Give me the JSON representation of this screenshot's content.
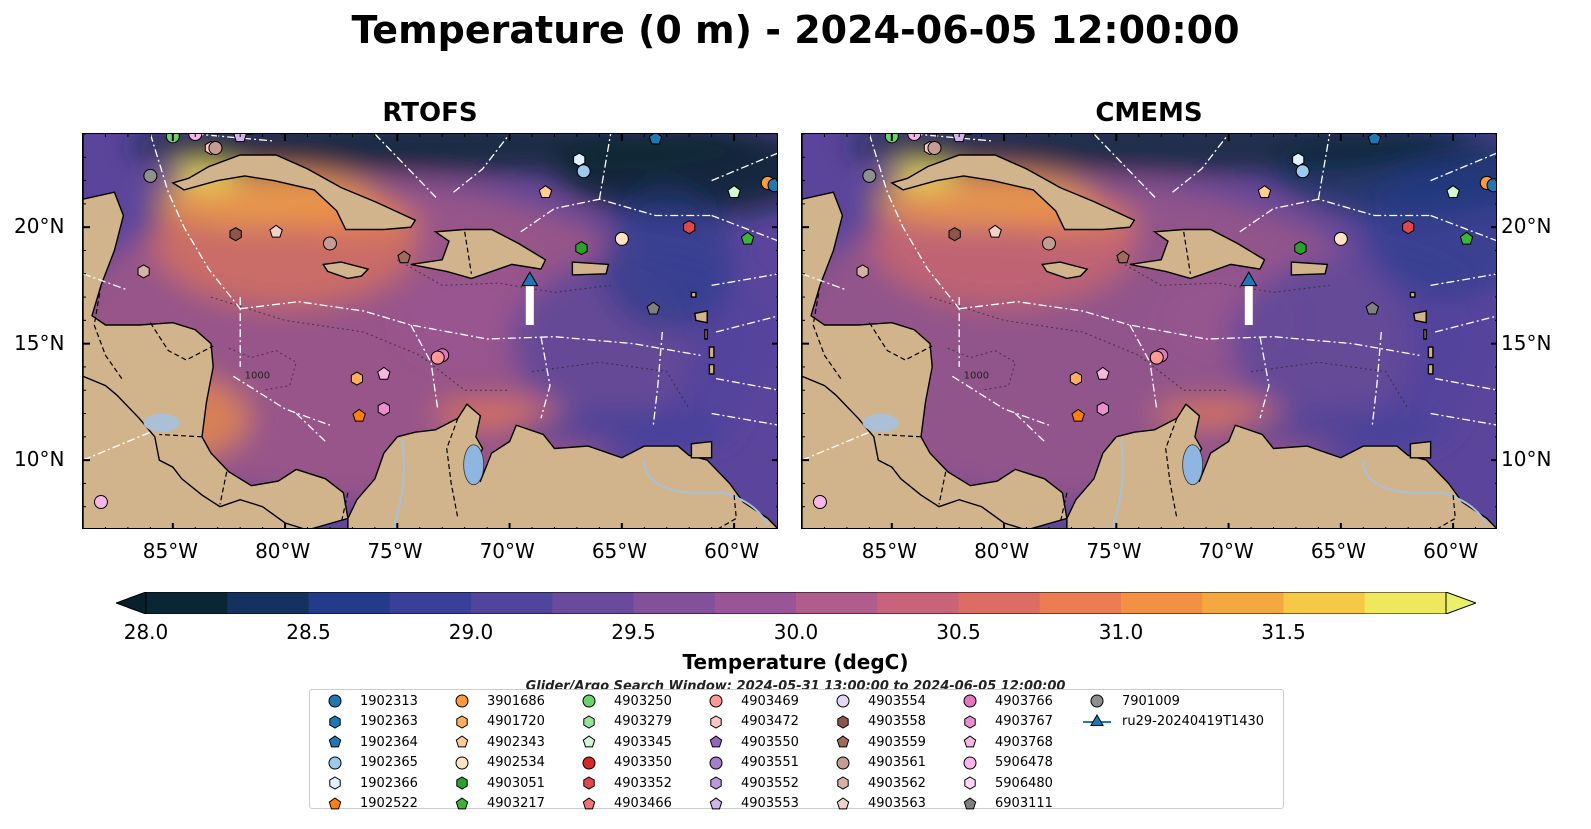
{
  "title": "Temperature (0 m) - 2024-06-05 12:00:00",
  "panels": [
    {
      "title": "RTOFS"
    },
    {
      "title": "CMEMS"
    }
  ],
  "map": {
    "lon_ticks": [
      "85°W",
      "80°W",
      "75°W",
      "70°W",
      "65°W",
      "60°W"
    ],
    "lat_ticks": [
      "20°N",
      "15°N",
      "10°N"
    ],
    "lon_range": [
      -89,
      -58
    ],
    "lat_range": [
      7,
      24
    ],
    "contour_label": "1000"
  },
  "colorbar": {
    "label": "Temperature (degC)",
    "ticks": [
      "28.0",
      "28.5",
      "29.0",
      "29.5",
      "30.0",
      "30.5",
      "31.0",
      "31.5"
    ],
    "colors": [
      "#0a2533",
      "#15325e",
      "#243a8a",
      "#3a3f9a",
      "#51449c",
      "#6a4a9b",
      "#83509a",
      "#9a5596",
      "#b05c8c",
      "#c8637a",
      "#dd6c64",
      "#ec7d52",
      "#f29044",
      "#f5a840",
      "#f5c846",
      "#f0e85c"
    ],
    "over_color": "#eaf06a",
    "under_color": "#07202b"
  },
  "legend": {
    "title": "Glider/Argo Search Window: 2024-05-31 13:00:00 to 2024-06-05 12:00:00",
    "items": [
      {
        "label": "1902313",
        "shape": "circle",
        "color": "#1f77b4"
      },
      {
        "label": "1902363",
        "shape": "hexagon",
        "color": "#1f77b4"
      },
      {
        "label": "1902364",
        "shape": "pentagon",
        "color": "#1f77b4"
      },
      {
        "label": "1902365",
        "shape": "circle",
        "color": "#9ec9ef"
      },
      {
        "label": "1902366",
        "shape": "hexagon",
        "color": "#dff0ff"
      },
      {
        "label": "1902522",
        "shape": "pentagon",
        "color": "#ff7f0e"
      },
      {
        "label": "3901686",
        "shape": "circle",
        "color": "#ff9a3c"
      },
      {
        "label": "4901720",
        "shape": "hexagon",
        "color": "#ffae60"
      },
      {
        "label": "4902343",
        "shape": "pentagon",
        "color": "#ffcc99"
      },
      {
        "label": "4902534",
        "shape": "circle",
        "color": "#ffe2c4"
      },
      {
        "label": "4903051",
        "shape": "hexagon",
        "color": "#2ca02c"
      },
      {
        "label": "4903217",
        "shape": "pentagon",
        "color": "#3cb43c"
      },
      {
        "label": "4903250",
        "shape": "circle",
        "color": "#6ad36a"
      },
      {
        "label": "4903279",
        "shape": "hexagon",
        "color": "#98e398"
      },
      {
        "label": "4903345",
        "shape": "pentagon",
        "color": "#d2f7d2"
      },
      {
        "label": "4903350",
        "shape": "circle",
        "color": "#d62728"
      },
      {
        "label": "4903352",
        "shape": "hexagon",
        "color": "#e0474a"
      },
      {
        "label": "4903466",
        "shape": "pentagon",
        "color": "#f07474"
      },
      {
        "label": "4903469",
        "shape": "circle",
        "color": "#ff9896"
      },
      {
        "label": "4903472",
        "shape": "hexagon",
        "color": "#ffc6c4"
      },
      {
        "label": "4903550",
        "shape": "pentagon",
        "color": "#9467bd"
      },
      {
        "label": "4903551",
        "shape": "circle",
        "color": "#a57fcb"
      },
      {
        "label": "4903552",
        "shape": "hexagon",
        "color": "#bb99dd"
      },
      {
        "label": "4903553",
        "shape": "pentagon",
        "color": "#cdb4ea"
      },
      {
        "label": "4903554",
        "shape": "circle",
        "color": "#e4d6f5"
      },
      {
        "label": "4903558",
        "shape": "hexagon",
        "color": "#8c564b"
      },
      {
        "label": "4903559",
        "shape": "pentagon",
        "color": "#a06a5c"
      },
      {
        "label": "4903561",
        "shape": "circle",
        "color": "#c49c94"
      },
      {
        "label": "4903562",
        "shape": "hexagon",
        "color": "#d8b0a6"
      },
      {
        "label": "4903563",
        "shape": "pentagon",
        "color": "#f2d1c6"
      },
      {
        "label": "4903766",
        "shape": "circle",
        "color": "#e377c2"
      },
      {
        "label": "4903767",
        "shape": "hexagon",
        "color": "#eb8ed0"
      },
      {
        "label": "4903768",
        "shape": "pentagon",
        "color": "#f7b6e2"
      },
      {
        "label": "5906478",
        "shape": "circle",
        "color": "#f7b6e8"
      },
      {
        "label": "5906480",
        "shape": "hexagon",
        "color": "#fcd5f2"
      },
      {
        "label": "6903111",
        "shape": "pentagon",
        "color": "#7f7f7f"
      },
      {
        "label": "7901009",
        "shape": "circle",
        "color": "#8f8f8f"
      },
      {
        "label": "ru29-20240419T1430",
        "shape": "triangle-line",
        "color": "#1f77b4"
      }
    ]
  },
  "markers": [
    {
      "id": "7901009",
      "lon": -86.0,
      "lat": 22.2
    },
    {
      "id": "4903345",
      "lon": -85.0,
      "lat": 24.0
    },
    {
      "id": "4903250",
      "lon": -85.0,
      "lat": 23.9
    },
    {
      "id": "5906478",
      "lon": -84.0,
      "lat": 24.0
    },
    {
      "id": "4903472",
      "lon": -83.3,
      "lat": 23.4
    },
    {
      "id": "4903561",
      "lon": -83.1,
      "lat": 23.4
    },
    {
      "id": "4903553",
      "lon": -82.0,
      "lat": 23.9
    },
    {
      "id": "4903558",
      "lon": -82.2,
      "lat": 19.7
    },
    {
      "id": "4903563",
      "lon": -80.4,
      "lat": 19.8
    },
    {
      "id": "4903561",
      "lon": -78.0,
      "lat": 19.3
    },
    {
      "id": "4903562",
      "lon": -86.3,
      "lat": 18.1
    },
    {
      "id": "4903559",
      "lon": -74.7,
      "lat": 18.7
    },
    {
      "id": "4902343",
      "lon": -68.4,
      "lat": 21.5
    },
    {
      "id": "4903051",
      "lon": -66.8,
      "lat": 19.1
    },
    {
      "id": "4902534",
      "lon": -65.0,
      "lat": 19.5
    },
    {
      "id": "1902366",
      "lon": -66.9,
      "lat": 22.9
    },
    {
      "id": "1902365",
      "lon": -66.7,
      "lat": 22.4
    },
    {
      "id": "1902364",
      "lon": -63.5,
      "lat": 23.8
    },
    {
      "id": "4903352",
      "lon": -62.0,
      "lat": 20.0
    },
    {
      "id": "4903345",
      "lon": -60.0,
      "lat": 21.5
    },
    {
      "id": "4903217",
      "lon": -59.4,
      "lat": 19.5
    },
    {
      "id": "3901686",
      "lon": -58.5,
      "lat": 21.9
    },
    {
      "id": "1902313",
      "lon": -58.2,
      "lat": 21.8
    },
    {
      "id": "6903111",
      "lon": -63.6,
      "lat": 16.5
    },
    {
      "id": "4903766",
      "lon": -73.0,
      "lat": 14.5
    },
    {
      "id": "4903469",
      "lon": -73.2,
      "lat": 14.4
    },
    {
      "id": "4901720",
      "lon": -76.8,
      "lat": 13.5
    },
    {
      "id": "4903768",
      "lon": -75.6,
      "lat": 13.7
    },
    {
      "id": "1902522",
      "lon": -76.7,
      "lat": 11.9
    },
    {
      "id": "4903767",
      "lon": -75.6,
      "lat": 12.2
    },
    {
      "id": "5906478",
      "lon": -88.2,
      "lat": 8.2
    }
  ],
  "glider": {
    "id": "ru29-20240419T1430",
    "lon": -69.1,
    "lat": 17.6,
    "track_end_lat": 15.8
  }
}
